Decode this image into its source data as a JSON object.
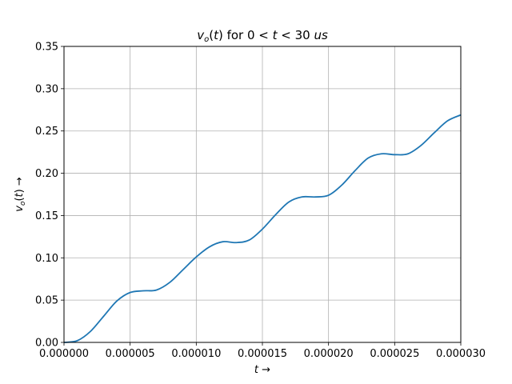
{
  "chart_data": {
    "type": "line",
    "title": "v_o(t) for 0 < t < 30 us",
    "xlabel": "t →",
    "ylabel": "v_o(t) →",
    "xlim": [
      0.0,
      3e-05
    ],
    "ylim": [
      0.0,
      0.35
    ],
    "grid": true,
    "x_ticks": [
      0.0,
      5e-06,
      1e-05,
      1.5e-05,
      2e-05,
      2.5e-05,
      3e-05
    ],
    "x_tick_labels": [
      "0.000000",
      "0.000005",
      "0.000010",
      "0.000015",
      "0.000020",
      "0.000025",
      "0.000030"
    ],
    "y_ticks": [
      0.0,
      0.05,
      0.1,
      0.15,
      0.2,
      0.25,
      0.3,
      0.35
    ],
    "y_tick_labels": [
      "0.00",
      "0.05",
      "0.10",
      "0.15",
      "0.20",
      "0.25",
      "0.30",
      "0.35"
    ],
    "series": [
      {
        "color": "#1f77b4",
        "x": [
          0.0,
          1e-06,
          2e-06,
          3e-06,
          4e-06,
          5e-06,
          6e-06,
          7e-06,
          8e-06,
          9e-06,
          1e-05,
          1.1e-05,
          1.2e-05,
          1.3e-05,
          1.4e-05,
          1.5e-05,
          1.6e-05,
          1.7e-05,
          1.8e-05,
          1.9e-05,
          2e-05,
          2.1e-05,
          2.2e-05,
          2.3e-05,
          2.4e-05,
          2.5e-05,
          2.6e-05,
          2.7e-05,
          2.8e-05,
          2.9e-05,
          3e-05
        ],
        "y": [
          0.0,
          0.002,
          0.013,
          0.031,
          0.049,
          0.059,
          0.061,
          0.062,
          0.071,
          0.086,
          0.101,
          0.113,
          0.119,
          0.118,
          0.121,
          0.134,
          0.151,
          0.166,
          0.172,
          0.172,
          0.174,
          0.186,
          0.203,
          0.218,
          0.223,
          0.222,
          0.223,
          0.233,
          0.248,
          0.262,
          0.269
        ]
      }
    ]
  }
}
